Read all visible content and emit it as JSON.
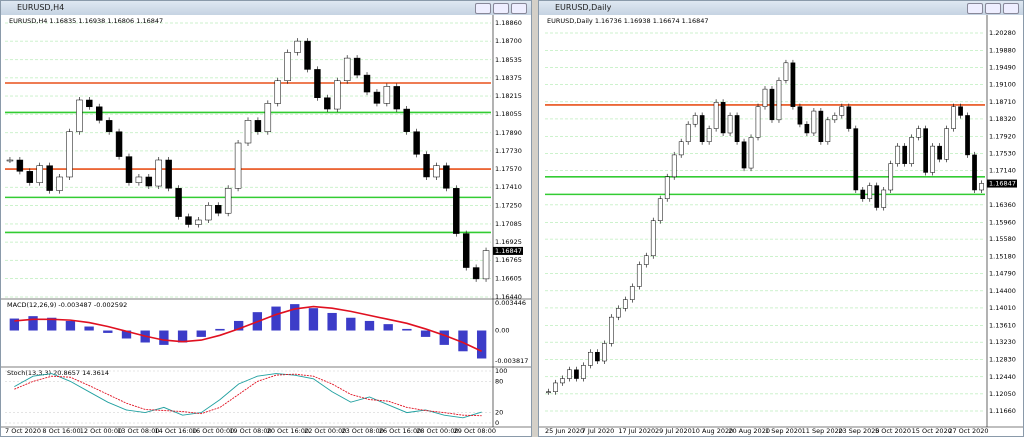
{
  "windows": [
    {
      "title": "EURUSD,H4",
      "info": "EURUSD,H4 1.16835 1.16938 1.16806 1.16847",
      "price_ticks": [
        {
          "value": 1.1886,
          "label": "1.18860"
        },
        {
          "value": 1.187,
          "label": "1.18700"
        },
        {
          "value": 1.18535,
          "label": "1.18535"
        },
        {
          "value": 1.18375,
          "label": "1.18375"
        },
        {
          "value": 1.18215,
          "label": "1.18215"
        },
        {
          "value": 1.18055,
          "label": "1.18055"
        },
        {
          "value": 1.1789,
          "label": "1.17890"
        },
        {
          "value": 1.1773,
          "label": "1.17730"
        },
        {
          "value": 1.1757,
          "label": "1.17570"
        },
        {
          "value": 1.1741,
          "label": "1.17410"
        },
        {
          "value": 1.1725,
          "label": "1.17250"
        },
        {
          "value": 1.17085,
          "label": "1.17085"
        },
        {
          "value": 1.16925,
          "label": "1.16925"
        },
        {
          "value": 1.16765,
          "label": "1.16765"
        },
        {
          "value": 1.16605,
          "label": "1.16605"
        },
        {
          "value": 1.1644,
          "label": "1.16440"
        }
      ],
      "current": {
        "value": 1.16847,
        "label": "1.16847"
      },
      "closes": [
        1.1765,
        1.1755,
        1.1745,
        1.176,
        1.1738,
        1.175,
        1.179,
        1.1818,
        1.1812,
        1.18,
        1.179,
        1.1768,
        1.1745,
        1.175,
        1.1742,
        1.1765,
        1.174,
        1.1715,
        1.1708,
        1.1712,
        1.1725,
        1.1718,
        1.174,
        1.178,
        1.18,
        1.179,
        1.1815,
        1.1835,
        1.186,
        1.187,
        1.1845,
        1.182,
        1.181,
        1.1835,
        1.1855,
        1.184,
        1.1825,
        1.1815,
        1.183,
        1.181,
        1.179,
        1.177,
        1.175,
        1.176,
        1.174,
        1.17,
        1.167,
        1.166,
        1.1685
      ],
      "levels": [
        {
          "value": 1.1833,
          "color": "#e8501a"
        },
        {
          "value": 1.1757,
          "color": "#e8501a"
        },
        {
          "value": 1.1807,
          "color": "#33cc33"
        },
        {
          "value": 1.1732,
          "color": "#33cc33"
        },
        {
          "value": 1.1701,
          "color": "#33cc33"
        }
      ],
      "macd": {
        "info": "MACD(12,26,9) -0.003487 -0.002592",
        "ticks": [
          {
            "value": 0.003446,
            "label": "0.003446"
          },
          {
            "value": 0,
            "label": "0.00"
          },
          {
            "value": -0.003817,
            "label": "-0.003817"
          }
        ],
        "histogram": [
          0.0015,
          0.0018,
          0.0016,
          0.0012,
          0.0005,
          -0.0003,
          -0.001,
          -0.0015,
          -0.0018,
          -0.0015,
          -0.0008,
          0.0002,
          0.0012,
          0.0023,
          0.003,
          0.0033,
          0.0028,
          0.0022,
          0.0016,
          0.0012,
          0.0008,
          0.0002,
          -0.0008,
          -0.0018,
          -0.0026,
          -0.0035
        ],
        "signal": [
          0.0012,
          0.0014,
          0.0014,
          0.0013,
          0.001,
          0.0005,
          -0.0001,
          -0.0007,
          -0.0012,
          -0.0014,
          -0.0012,
          -0.0006,
          0.0002,
          0.0011,
          0.002,
          0.0027,
          0.003,
          0.0028,
          0.0024,
          0.0019,
          0.0014,
          0.0009,
          0.0002,
          -0.0006,
          -0.0015,
          -0.0026
        ]
      },
      "stoch": {
        "info": "Stoch(13,3,3) 20.8657 14.3614",
        "ticks": [
          100,
          80,
          20,
          0
        ],
        "main": [
          70,
          90,
          95,
          80,
          60,
          40,
          25,
          20,
          30,
          15,
          20,
          45,
          75,
          90,
          95,
          92,
          85,
          60,
          40,
          50,
          35,
          20,
          25,
          15,
          10,
          21
        ],
        "signal": [
          65,
          80,
          90,
          88,
          72,
          55,
          38,
          26,
          24,
          22,
          18,
          30,
          55,
          80,
          92,
          94,
          90,
          75,
          55,
          45,
          42,
          30,
          24,
          20,
          15,
          14
        ]
      },
      "dates": [
        "7 Oct 2020",
        "8 Oct 16:00",
        "12 Oct 00:00",
        "13 Oct 08:00",
        "14 Oct 16:00",
        "16 Oct 00:00",
        "19 Oct 08:00",
        "20 Oct 16:00",
        "22 Oct 00:00",
        "23 Oct 08:00",
        "26 Oct 16:00",
        "28 Oct 00:00",
        "29 Oct 08:00"
      ]
    },
    {
      "title": "EURUSD,Daily",
      "info": "EURUSD,Daily 1.16736 1.16938 1.16674 1.16847",
      "price_ticks": [
        {
          "value": 1.2028,
          "label": "1.20280"
        },
        {
          "value": 1.1988,
          "label": "1.19880"
        },
        {
          "value": 1.1949,
          "label": "1.19490"
        },
        {
          "value": 1.191,
          "label": "1.19100"
        },
        {
          "value": 1.1871,
          "label": "1.18710"
        },
        {
          "value": 1.1832,
          "label": "1.18320"
        },
        {
          "value": 1.1792,
          "label": "1.17920"
        },
        {
          "value": 1.1753,
          "label": "1.17530"
        },
        {
          "value": 1.1714,
          "label": "1.17140"
        },
        {
          "value": 1.1636,
          "label": "1.16360"
        },
        {
          "value": 1.1596,
          "label": "1.15960"
        },
        {
          "value": 1.1558,
          "label": "1.15580"
        },
        {
          "value": 1.1518,
          "label": "1.15180"
        },
        {
          "value": 1.1479,
          "label": "1.14790"
        },
        {
          "value": 1.144,
          "label": "1.14400"
        },
        {
          "value": 1.1401,
          "label": "1.14010"
        },
        {
          "value": 1.1361,
          "label": "1.13610"
        },
        {
          "value": 1.1323,
          "label": "1.13230"
        },
        {
          "value": 1.1283,
          "label": "1.12830"
        },
        {
          "value": 1.1244,
          "label": "1.12440"
        },
        {
          "value": 1.1205,
          "label": "1.12050"
        },
        {
          "value": 1.1166,
          "label": "1.11660"
        }
      ],
      "current": {
        "value": 1.16847,
        "label": "1.16847"
      },
      "closes": [
        1.121,
        1.123,
        1.124,
        1.126,
        1.124,
        1.127,
        1.13,
        1.128,
        1.132,
        1.138,
        1.14,
        1.142,
        1.145,
        1.15,
        1.152,
        1.16,
        1.165,
        1.17,
        1.175,
        1.178,
        1.182,
        1.184,
        1.178,
        1.181,
        1.187,
        1.18,
        1.184,
        1.178,
        1.172,
        1.179,
        1.186,
        1.19,
        1.183,
        1.192,
        1.196,
        1.186,
        1.182,
        1.18,
        1.185,
        1.178,
        1.183,
        1.184,
        1.186,
        1.181,
        1.167,
        1.165,
        1.168,
        1.163,
        1.167,
        1.173,
        1.177,
        1.173,
        1.179,
        1.181,
        1.171,
        1.177,
        1.174,
        1.181,
        1.186,
        1.184,
        1.175,
        1.167,
        1.1685
      ],
      "levels": [
        {
          "value": 1.1864,
          "color": "#e8501a"
        },
        {
          "value": 1.17,
          "color": "#33cc33"
        },
        {
          "value": 1.166,
          "color": "#33cc33"
        }
      ],
      "dates": [
        "25 Jun 2020",
        "7 Jul 2020",
        "17 Jul 2020",
        "29 Jul 2020",
        "10 Aug 2020",
        "20 Aug 2020",
        "1 Sep 2020",
        "11 Sep 2020",
        "23 Sep 2020",
        "5 Oct 2020",
        "15 Oct 2020",
        "27 Oct 2020"
      ]
    }
  ]
}
